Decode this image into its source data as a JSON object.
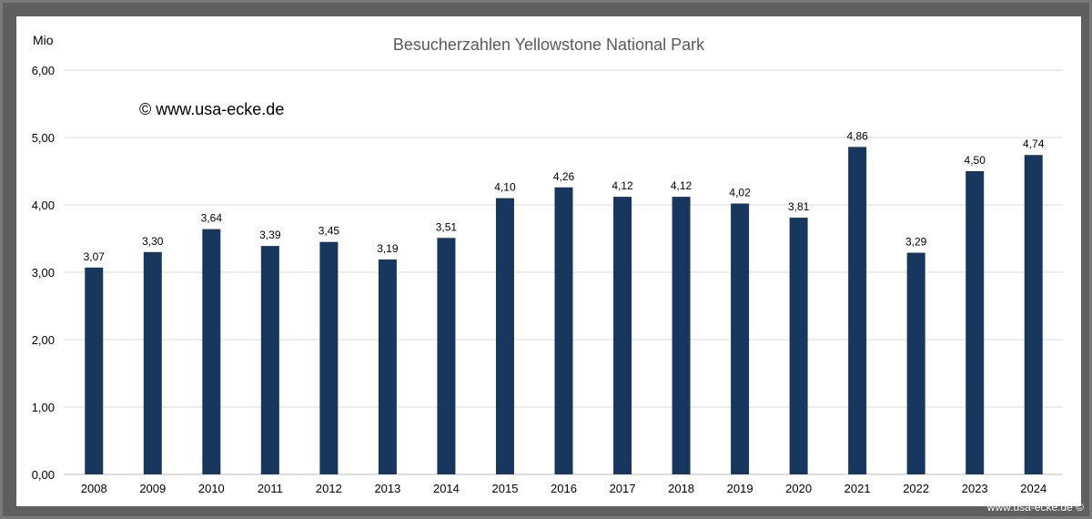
{
  "chart_data": {
    "type": "bar",
    "title": "Besucherzahlen Yellowstone National Park",
    "ylabel": "Mio",
    "xlabel": "",
    "ylim": [
      0,
      6
    ],
    "yticks": [
      "0,00",
      "1,00",
      "2,00",
      "3,00",
      "4,00",
      "5,00",
      "6,00"
    ],
    "categories": [
      "2008",
      "2009",
      "2010",
      "2011",
      "2012",
      "2013",
      "2014",
      "2015",
      "2016",
      "2017",
      "2018",
      "2019",
      "2020",
      "2021",
      "2022",
      "2023",
      "2024"
    ],
    "values": [
      3.07,
      3.3,
      3.64,
      3.39,
      3.45,
      3.19,
      3.51,
      4.1,
      4.26,
      4.12,
      4.12,
      4.02,
      3.81,
      4.86,
      3.29,
      4.5,
      4.74
    ],
    "value_labels": [
      "3,07",
      "3,30",
      "3,64",
      "3,39",
      "3,45",
      "3,19",
      "3,51",
      "4,10",
      "4,26",
      "4,12",
      "4,12",
      "4,02",
      "3,81",
      "4,86",
      "3,29",
      "4,50",
      "4,74"
    ],
    "grid": true,
    "legend": "none",
    "bar_color": "#17375e",
    "annotation": "© www.usa-ecke.de"
  },
  "footer_text": "www.usa-ecke.de ©"
}
